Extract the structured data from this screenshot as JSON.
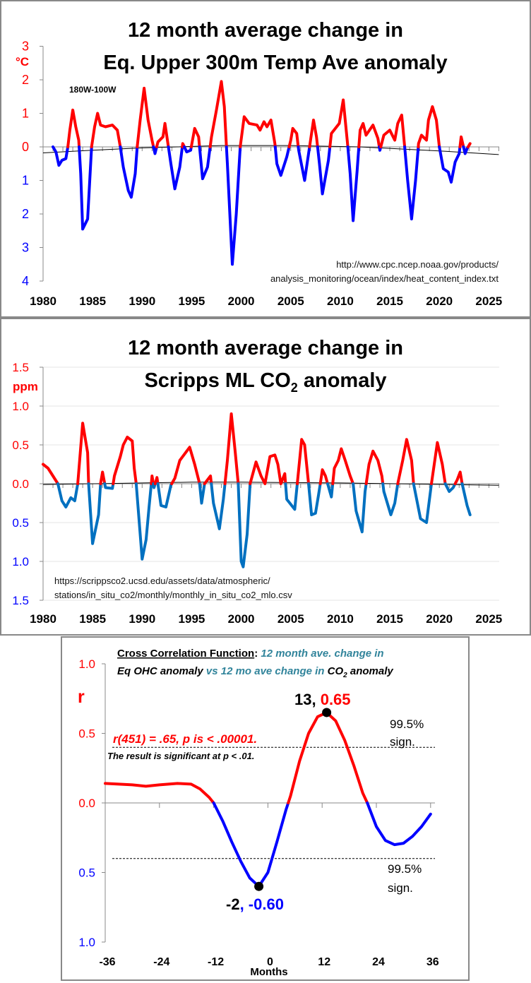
{
  "colors": {
    "positive": "#ff0000",
    "negative_ohc": "#0000ff",
    "negative_co2": "#0070c0",
    "teal": "#31849b",
    "trend": "#000000"
  },
  "chart_data": [
    {
      "type": "line",
      "title_line1": "12 month average change in",
      "title_line2": "Eq. Upper 300m Temp Ave anomaly",
      "region_label": "180W-100W",
      "ylabel": "°C",
      "source_line1": "http://www.cpc.ncep.noaa.gov/products/",
      "source_line2": "analysis_monitoring/ocean/index/heat_content_index.txt",
      "xlim": [
        1980,
        2026
      ],
      "ylim": [
        -4,
        3
      ],
      "x_ticks": [
        "1980",
        "1985",
        "1990",
        "1995",
        "2000",
        "2005",
        "2010",
        "2015",
        "2020",
        "2025"
      ],
      "y_ticks": [
        {
          "value": 3,
          "label": "3"
        },
        {
          "value": 2,
          "label": "2"
        },
        {
          "value": 1,
          "label": "1"
        },
        {
          "value": 0,
          "label": "0"
        },
        {
          "value": -1,
          "label": "1"
        },
        {
          "value": -2,
          "label": "2"
        },
        {
          "value": -3,
          "label": "3"
        },
        {
          "value": -4,
          "label": "4"
        }
      ],
      "grid": false,
      "series": [
        [
          1981.0,
          0.0
        ],
        [
          1981.3,
          -0.15
        ],
        [
          1981.6,
          -0.55
        ],
        [
          1981.9,
          -0.4
        ],
        [
          1982.3,
          -0.35
        ],
        [
          1982.5,
          0
        ],
        [
          1982.7,
          0.5
        ],
        [
          1983.0,
          1.1
        ],
        [
          1983.3,
          0.6
        ],
        [
          1983.6,
          0.2
        ],
        [
          1983.8,
          -0.8
        ],
        [
          1984.0,
          -2.45
        ],
        [
          1984.5,
          -2.15
        ],
        [
          1984.9,
          0
        ],
        [
          1985.2,
          0.6
        ],
        [
          1985.5,
          1.0
        ],
        [
          1985.8,
          0.65
        ],
        [
          1986.3,
          0.6
        ],
        [
          1987.0,
          0.65
        ],
        [
          1987.5,
          0.5
        ],
        [
          1987.8,
          0
        ],
        [
          1988.1,
          -0.6
        ],
        [
          1988.6,
          -1.3
        ],
        [
          1988.9,
          -1.5
        ],
        [
          1989.3,
          -0.8
        ],
        [
          1989.5,
          0
        ],
        [
          1989.8,
          0.8
        ],
        [
          1990.2,
          1.75
        ],
        [
          1990.6,
          0.8
        ],
        [
          1991.0,
          0.2
        ],
        [
          1991.3,
          -0.2
        ],
        [
          1991.6,
          0.15
        ],
        [
          1992.1,
          0.3
        ],
        [
          1992.3,
          0.7
        ],
        [
          1992.6,
          0.1
        ],
        [
          1992.9,
          -0.5
        ],
        [
          1993.3,
          -1.25
        ],
        [
          1993.8,
          -0.6
        ],
        [
          1994.1,
          0.1
        ],
        [
          1994.5,
          -0.15
        ],
        [
          1994.9,
          -0.1
        ],
        [
          1995.3,
          0.55
        ],
        [
          1995.7,
          0.3
        ],
        [
          1996.1,
          -0.95
        ],
        [
          1996.6,
          -0.6
        ],
        [
          1997.0,
          0.3
        ],
        [
          1997.5,
          1.1
        ],
        [
          1998.0,
          1.95
        ],
        [
          1998.3,
          1.2
        ],
        [
          1998.6,
          -0.5
        ],
        [
          1999.1,
          -3.5
        ],
        [
          1999.5,
          -2.0
        ],
        [
          1999.9,
          0
        ],
        [
          2000.3,
          0.9
        ],
        [
          2000.8,
          0.7
        ],
        [
          2001.6,
          0.65
        ],
        [
          2001.9,
          0.5
        ],
        [
          2002.3,
          0.75
        ],
        [
          2002.6,
          0.6
        ],
        [
          2003.0,
          0.8
        ],
        [
          2003.4,
          0.1
        ],
        [
          2003.6,
          -0.5
        ],
        [
          2004.0,
          -0.85
        ],
        [
          2004.6,
          -0.3
        ],
        [
          2005.0,
          0.2
        ],
        [
          2005.2,
          0.55
        ],
        [
          2005.6,
          0.4
        ],
        [
          2005.8,
          -0.1
        ],
        [
          2006.4,
          -1.0
        ],
        [
          2006.8,
          -0.2
        ],
        [
          2007.3,
          0.8
        ],
        [
          2007.6,
          0.3
        ],
        [
          2007.9,
          -0.5
        ],
        [
          2008.2,
          -1.4
        ],
        [
          2008.8,
          -0.4
        ],
        [
          2009.1,
          0.4
        ],
        [
          2009.5,
          0.55
        ],
        [
          2009.9,
          0.7
        ],
        [
          2010.3,
          1.4
        ],
        [
          2010.7,
          0.2
        ],
        [
          2011.0,
          -0.8
        ],
        [
          2011.3,
          -2.2
        ],
        [
          2011.7,
          -0.7
        ],
        [
          2012.0,
          0.5
        ],
        [
          2012.3,
          0.7
        ],
        [
          2012.6,
          0.35
        ],
        [
          2013.3,
          0.65
        ],
        [
          2013.8,
          0.25
        ],
        [
          2014.0,
          -0.1
        ],
        [
          2014.4,
          0.35
        ],
        [
          2015.0,
          0.5
        ],
        [
          2015.5,
          0.2
        ],
        [
          2015.8,
          0.7
        ],
        [
          2016.2,
          0.95
        ],
        [
          2016.5,
          0
        ],
        [
          2016.8,
          -1.0
        ],
        [
          2017.2,
          -2.15
        ],
        [
          2017.6,
          -1.0
        ],
        [
          2017.9,
          0.1
        ],
        [
          2018.2,
          0.35
        ],
        [
          2018.7,
          0.2
        ],
        [
          2018.9,
          0.8
        ],
        [
          2019.3,
          1.2
        ],
        [
          2019.7,
          0.8
        ],
        [
          2020.0,
          0
        ],
        [
          2020.4,
          -0.65
        ],
        [
          2020.9,
          -0.75
        ],
        [
          2021.2,
          -1.05
        ],
        [
          2021.6,
          -0.45
        ],
        [
          2022.0,
          -0.2
        ],
        [
          2022.2,
          0.3
        ],
        [
          2022.6,
          -0.2
        ],
        [
          2022.8,
          -0.05
        ],
        [
          2023.1,
          0.1
        ]
      ],
      "trend": [
        [
          1980,
          -0.18
        ],
        [
          1985,
          -0.1
        ],
        [
          1990,
          -0.03
        ],
        [
          1998,
          0.04
        ],
        [
          2005,
          0.04
        ],
        [
          2012,
          0.0
        ],
        [
          2020,
          -0.12
        ],
        [
          2026,
          -0.23
        ]
      ]
    },
    {
      "type": "line",
      "title_line1": "12 month average change in",
      "title_line2": "Scripps ML CO",
      "title_sub": "2",
      "title_line2_end": " anomaly",
      "ylabel": "ppm",
      "source_line1": "https://scrippsco2.ucsd.edu/assets/data/atmospheric/",
      "source_line2": "stations/in_situ_co2/monthly/monthly_in_situ_co2_mlo.csv",
      "xlim": [
        1980,
        2026
      ],
      "ylim": [
        -1.5,
        1.5
      ],
      "x_ticks": [
        "1980",
        "1985",
        "1990",
        "1995",
        "2000",
        "2005",
        "2010",
        "2015",
        "2020",
        "2025"
      ],
      "y_ticks": [
        {
          "value": 1.5,
          "label": "1.5"
        },
        {
          "value": 1.0,
          "label": "1.0"
        },
        {
          "value": 0.5,
          "label": "0.5"
        },
        {
          "value": 0,
          "label": "0.0"
        },
        {
          "value": -0.5,
          "label": "0.5"
        },
        {
          "value": -1.0,
          "label": "1.0"
        },
        {
          "value": -1.5,
          "label": "1.5"
        }
      ],
      "grid": true,
      "series": [
        [
          1980.0,
          0.25
        ],
        [
          1980.5,
          0.2
        ],
        [
          1981.0,
          0.1
        ],
        [
          1981.5,
          0
        ],
        [
          1981.9,
          -0.22
        ],
        [
          1982.3,
          -0.3
        ],
        [
          1982.8,
          -0.18
        ],
        [
          1983.2,
          -0.22
        ],
        [
          1983.5,
          0
        ],
        [
          1984.0,
          0.78
        ],
        [
          1984.5,
          0.4
        ],
        [
          1984.6,
          0
        ],
        [
          1985.0,
          -0.77
        ],
        [
          1985.6,
          -0.4
        ],
        [
          1985.8,
          0
        ],
        [
          1986.0,
          0.15
        ],
        [
          1986.3,
          -0.05
        ],
        [
          1987.0,
          -0.06
        ],
        [
          1987.2,
          0.1
        ],
        [
          1987.8,
          0.35
        ],
        [
          1988.1,
          0.5
        ],
        [
          1988.5,
          0.6
        ],
        [
          1989.0,
          0.55
        ],
        [
          1989.2,
          0.2
        ],
        [
          1989.4,
          0
        ],
        [
          1990.0,
          -0.97
        ],
        [
          1990.4,
          -0.72
        ],
        [
          1990.7,
          -0.3
        ],
        [
          1991.0,
          0.1
        ],
        [
          1991.2,
          -0.05
        ],
        [
          1991.5,
          0.08
        ],
        [
          1991.9,
          -0.28
        ],
        [
          1992.4,
          -0.3
        ],
        [
          1992.9,
          -0.02
        ],
        [
          1993.3,
          0.07
        ],
        [
          1993.8,
          0.3
        ],
        [
          1994.8,
          0.47
        ],
        [
          1995.3,
          0.25
        ],
        [
          1995.8,
          0
        ],
        [
          1996.0,
          -0.25
        ],
        [
          1996.3,
          0
        ],
        [
          1996.9,
          0.1
        ],
        [
          1997.2,
          -0.25
        ],
        [
          1997.8,
          -0.58
        ],
        [
          1998.2,
          -0.2
        ],
        [
          1998.6,
          0.3
        ],
        [
          1999.0,
          0.9
        ],
        [
          1999.4,
          0.4
        ],
        [
          1999.7,
          0
        ],
        [
          2000.0,
          -1.0
        ],
        [
          2000.2,
          -1.07
        ],
        [
          2000.6,
          -0.65
        ],
        [
          2000.9,
          0
        ],
        [
          2001.5,
          0.28
        ],
        [
          2002.0,
          0.1
        ],
        [
          2002.4,
          0
        ],
        [
          2002.9,
          0.35
        ],
        [
          2003.4,
          0.37
        ],
        [
          2003.7,
          0.25
        ],
        [
          2004.0,
          0
        ],
        [
          2004.4,
          0.13
        ],
        [
          2004.6,
          -0.2
        ],
        [
          2005.4,
          -0.33
        ],
        [
          2006.1,
          0.57
        ],
        [
          2006.4,
          0.5
        ],
        [
          2006.8,
          0
        ],
        [
          2007.1,
          -0.4
        ],
        [
          2007.5,
          -0.38
        ],
        [
          2007.8,
          -0.15
        ],
        [
          2008.2,
          0.18
        ],
        [
          2008.5,
          0.1
        ],
        [
          2009.1,
          -0.17
        ],
        [
          2009.4,
          0.2
        ],
        [
          2009.8,
          0.3
        ],
        [
          2010.1,
          0.45
        ],
        [
          2010.5,
          0.3
        ],
        [
          2011.0,
          0.1
        ],
        [
          2011.3,
          0
        ],
        [
          2011.6,
          -0.35
        ],
        [
          2012.2,
          -0.62
        ],
        [
          2012.5,
          -0.1
        ],
        [
          2012.9,
          0.25
        ],
        [
          2013.3,
          0.42
        ],
        [
          2013.8,
          0.3
        ],
        [
          2014.2,
          0.1
        ],
        [
          2014.4,
          -0.1
        ],
        [
          2015.1,
          -0.4
        ],
        [
          2015.5,
          -0.25
        ],
        [
          2015.8,
          0
        ],
        [
          2016.3,
          0.3
        ],
        [
          2016.7,
          0.57
        ],
        [
          2017.2,
          0.3
        ],
        [
          2017.4,
          0
        ],
        [
          2018.1,
          -0.45
        ],
        [
          2018.7,
          -0.5
        ],
        [
          2019.2,
          0
        ],
        [
          2019.8,
          0.53
        ],
        [
          2020.3,
          0.25
        ],
        [
          2020.6,
          0
        ],
        [
          2021.0,
          -0.1
        ],
        [
          2021.4,
          -0.05
        ],
        [
          2021.8,
          0.05
        ],
        [
          2022.1,
          0.15
        ],
        [
          2022.3,
          0
        ],
        [
          2022.8,
          -0.28
        ],
        [
          2023.1,
          -0.4
        ]
      ],
      "trend": [
        [
          1980,
          -0.01
        ],
        [
          1995,
          0.02
        ],
        [
          2000,
          0.02
        ],
        [
          2010,
          0.01
        ],
        [
          2026,
          -0.02
        ]
      ]
    },
    {
      "type": "line",
      "title_underlined": "Cross Correlation Function",
      "title_colon": ":",
      "title_teal_1": " 12 month ave. change in",
      "title_black_2": "Eq OHC anomaly",
      "title_teal_2": " vs 12 mo ave change in ",
      "title_black_3": "CO",
      "title_sub": "2",
      "title_black_4": " anomaly",
      "ylabel": "r",
      "xlabel": "Months",
      "xlim": [
        -36,
        36
      ],
      "ylim": [
        -1.0,
        1.0
      ],
      "x_ticks": [
        "-36",
        "-24",
        "-12",
        "0",
        "12",
        "24",
        "36"
      ],
      "y_ticks": [
        {
          "value": 1.0,
          "label": "1.0"
        },
        {
          "value": 0.5,
          "label": "0.5"
        },
        {
          "value": 0,
          "label": "0.0"
        },
        {
          "value": -0.5,
          "label": "0.5"
        },
        {
          "value": -1.0,
          "label": "1.0"
        }
      ],
      "significance_level": 0.4,
      "sig_label_pct": "99.5%",
      "sig_label_word": "sign.",
      "stat_text": "r(451) = .65, p is < .00001.",
      "result_text": "The result is significant at p < .01.",
      "max_point": {
        "x": 13,
        "y": 0.65,
        "label_x": "13, ",
        "label_y": "0.65"
      },
      "min_point": {
        "x": -2,
        "y": -0.6,
        "label_x": "-2",
        "label_y": ", -0.60"
      },
      "series": [
        [
          -36,
          0.14
        ],
        [
          -33,
          0.135
        ],
        [
          -30,
          0.13
        ],
        [
          -27,
          0.12
        ],
        [
          -24,
          0.13
        ],
        [
          -20,
          0.14
        ],
        [
          -17,
          0.135
        ],
        [
          -15,
          0.1
        ],
        [
          -13,
          0.04
        ],
        [
          -12,
          0.0
        ],
        [
          -10,
          -0.13
        ],
        [
          -8,
          -0.28
        ],
        [
          -6,
          -0.42
        ],
        [
          -4,
          -0.54
        ],
        [
          -2,
          -0.6
        ],
        [
          0,
          -0.5
        ],
        [
          2,
          -0.28
        ],
        [
          4,
          -0.05
        ],
        [
          5,
          0.05
        ],
        [
          7,
          0.3
        ],
        [
          9,
          0.5
        ],
        [
          11,
          0.62
        ],
        [
          13,
          0.65
        ],
        [
          15,
          0.59
        ],
        [
          17,
          0.45
        ],
        [
          19,
          0.27
        ],
        [
          21,
          0.07
        ],
        [
          22,
          0.0
        ],
        [
          24,
          -0.17
        ],
        [
          26,
          -0.27
        ],
        [
          28,
          -0.3
        ],
        [
          30,
          -0.29
        ],
        [
          32,
          -0.24
        ],
        [
          34,
          -0.17
        ],
        [
          36,
          -0.08
        ]
      ]
    }
  ]
}
